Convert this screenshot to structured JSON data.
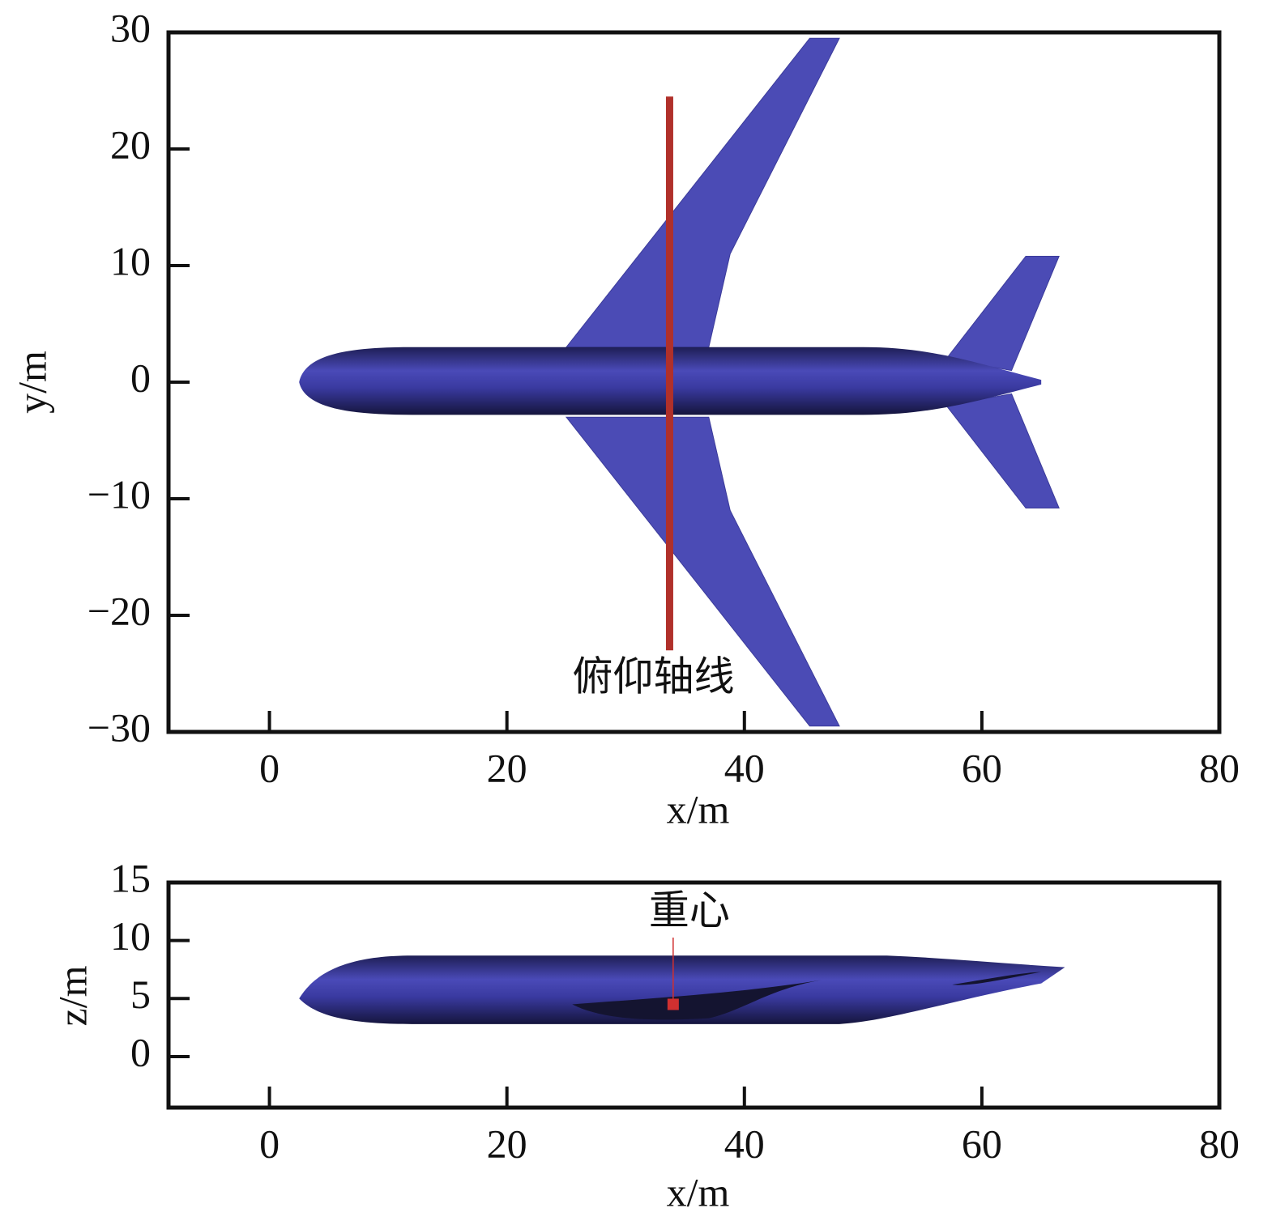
{
  "chart_data": [
    {
      "type": "scatter",
      "xlabel": "x/m",
      "ylabel": "y/m",
      "xlim": [
        -8.5,
        80
      ],
      "xticks": [
        0,
        20,
        40,
        60,
        80
      ],
      "ylim": [
        -30,
        30
      ],
      "yticks": [
        {
          "value": -30,
          "label": "−30"
        },
        {
          "value": -20,
          "label": "−20"
        },
        {
          "value": -10,
          "label": "−10"
        },
        0,
        10,
        20,
        30
      ],
      "annotations": [
        {
          "text": "俯仰轴线",
          "x": 33.7,
          "y": [
            -23,
            24.5
          ],
          "color": "#b0302a"
        }
      ]
    },
    {
      "type": "scatter",
      "xlabel": "x/m",
      "ylabel": "z/m",
      "xlim": [
        -8.5,
        80
      ],
      "xticks": [
        0,
        20,
        40,
        60,
        80
      ],
      "ylim": [
        -4.4,
        15
      ],
      "yticks": [
        0,
        5,
        10,
        15
      ],
      "annotations": [
        {
          "text": "重心",
          "x": 34,
          "y": 4.5,
          "color": "#d03030"
        }
      ]
    }
  ]
}
